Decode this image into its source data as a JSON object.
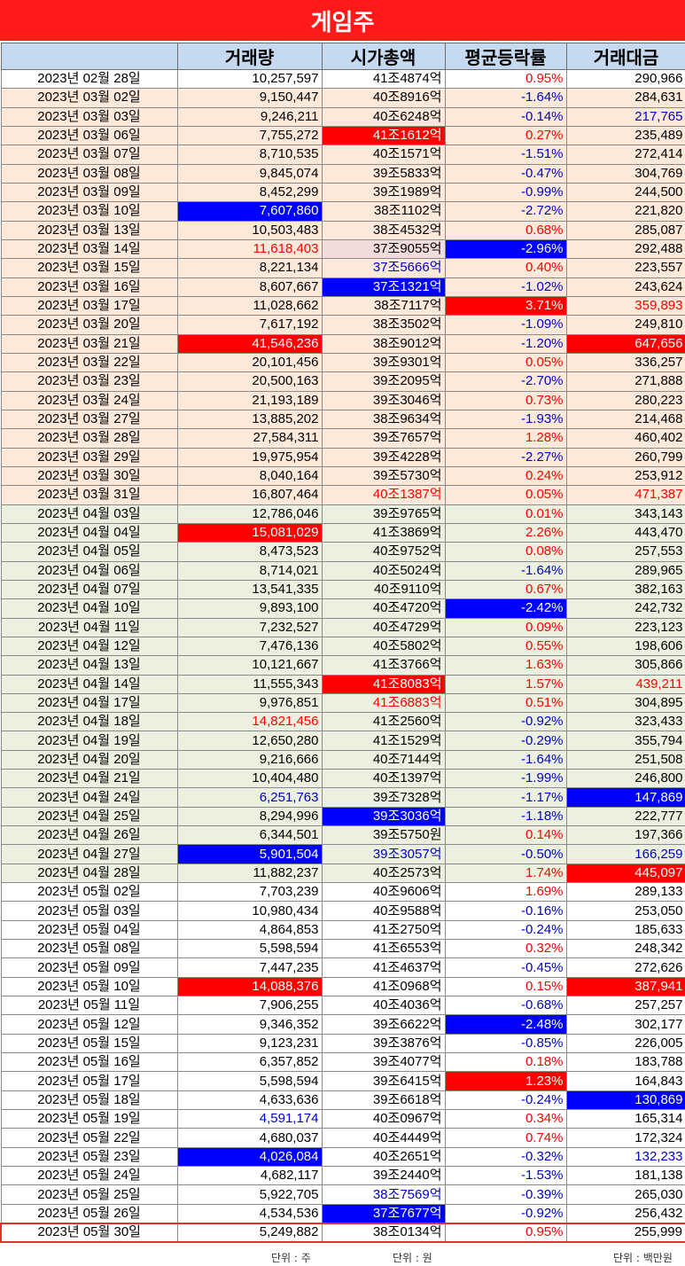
{
  "title": "게임주",
  "headers": [
    "",
    "거래량",
    "시가총액",
    "평균등락률",
    "거래대금"
  ],
  "colors": {
    "up": "#ff0000",
    "down": "#0000cc",
    "fill_red": "#ff0000",
    "fill_blue": "#0000ff",
    "mar_bg": "#fde9d9",
    "apr_bg": "#ebf1de",
    "header_bg": "#c5d9f1"
  },
  "rows": [
    {
      "g": "feb",
      "date": "2023년 02월 28일",
      "vol": "10,257,597",
      "cap": "41조4874억",
      "chg": "0.95%",
      "amt": "290,966"
    },
    {
      "g": "mar",
      "date": "2023년 03월 02일",
      "vol": "9,150,447",
      "cap": "40조8916억",
      "chg": "-1.64%",
      "amt": "284,631"
    },
    {
      "g": "mar",
      "date": "2023년 03월 03일",
      "vol": "9,246,211",
      "cap": "40조6248억",
      "chg": "-0.14%",
      "amt": "217,765",
      "s_amt": "txt-blue"
    },
    {
      "g": "mar",
      "date": "2023년 03월 06일",
      "vol": "7,755,272",
      "cap": "41조1612억",
      "chg": "0.27%",
      "amt": "235,489",
      "s_cap": "fill-red"
    },
    {
      "g": "mar",
      "date": "2023년 03월 07일",
      "vol": "8,710,535",
      "cap": "40조1571억",
      "chg": "-1.51%",
      "amt": "272,414"
    },
    {
      "g": "mar",
      "date": "2023년 03월 08일",
      "vol": "9,845,074",
      "cap": "39조5833억",
      "chg": "-0.47%",
      "amt": "304,769"
    },
    {
      "g": "mar",
      "date": "2023년 03월 09일",
      "vol": "8,452,299",
      "cap": "39조1989억",
      "chg": "-0.99%",
      "amt": "244,500"
    },
    {
      "g": "mar",
      "date": "2023년 03월 10일",
      "vol": "7,607,860",
      "cap": "38조1102억",
      "chg": "-2.72%",
      "amt": "221,820",
      "s_vol": "fill-blue"
    },
    {
      "g": "mar",
      "date": "2023년 03월 13일",
      "vol": "10,503,483",
      "cap": "38조4532억",
      "chg": "0.68%",
      "amt": "285,087"
    },
    {
      "g": "mar",
      "date": "2023년 03월 14일",
      "vol": "11,618,403",
      "cap": "37조9055억",
      "chg": "-2.96%",
      "amt": "292,488",
      "s_vol": "txt-red",
      "s_cap": "fill-pink",
      "s_chg": "fill-blue"
    },
    {
      "g": "mar",
      "date": "2023년 03월 15일",
      "vol": "8,221,134",
      "cap": "37조5666억",
      "chg": "0.40%",
      "amt": "223,557",
      "s_cap": "txt-blue"
    },
    {
      "g": "mar",
      "date": "2023년 03월 16일",
      "vol": "8,607,667",
      "cap": "37조1321억",
      "chg": "-1.02%",
      "amt": "243,624",
      "s_cap": "fill-blue"
    },
    {
      "g": "mar",
      "date": "2023년 03월 17일",
      "vol": "11,028,662",
      "cap": "38조7117억",
      "chg": "3.71%",
      "amt": "359,893",
      "s_chg": "fill-red",
      "s_amt": "txt-red"
    },
    {
      "g": "mar",
      "date": "2023년 03월 20일",
      "vol": "7,617,192",
      "cap": "38조3502억",
      "chg": "-1.09%",
      "amt": "249,810"
    },
    {
      "g": "mar",
      "date": "2023년 03월 21일",
      "vol": "41,546,236",
      "cap": "38조9012억",
      "chg": "-1.20%",
      "amt": "647,656",
      "s_vol": "fill-red",
      "s_amt": "fill-red"
    },
    {
      "g": "mar",
      "date": "2023년 03월 22일",
      "vol": "20,101,456",
      "cap": "39조9301억",
      "chg": "0.05%",
      "amt": "336,257"
    },
    {
      "g": "mar",
      "date": "2023년 03월 23일",
      "vol": "20,500,163",
      "cap": "39조2095억",
      "chg": "-2.70%",
      "amt": "271,888"
    },
    {
      "g": "mar",
      "date": "2023년 03월 24일",
      "vol": "21,193,189",
      "cap": "39조3046억",
      "chg": "0.73%",
      "amt": "280,223"
    },
    {
      "g": "mar",
      "date": "2023년 03월 27일",
      "vol": "13,885,202",
      "cap": "38조9634억",
      "chg": "-1.93%",
      "amt": "214,468"
    },
    {
      "g": "mar",
      "date": "2023년 03월 28일",
      "vol": "27,584,311",
      "cap": "39조7657억",
      "chg": "1.28%",
      "amt": "460,402"
    },
    {
      "g": "mar",
      "date": "2023년 03월 29일",
      "vol": "19,975,954",
      "cap": "39조4228억",
      "chg": "-2.27%",
      "amt": "260,799"
    },
    {
      "g": "mar",
      "date": "2023년 03월 30일",
      "vol": "8,040,164",
      "cap": "39조5730억",
      "chg": "0.24%",
      "amt": "253,912"
    },
    {
      "g": "mar",
      "date": "2023년 03월 31일",
      "vol": "16,807,464",
      "cap": "40조1387억",
      "chg": "0.05%",
      "amt": "471,387",
      "s_cap": "txt-red",
      "s_amt": "txt-red"
    },
    {
      "g": "apr",
      "date": "2023년 04월 03일",
      "vol": "12,786,046",
      "cap": "39조9765억",
      "chg": "0.01%",
      "amt": "343,143"
    },
    {
      "g": "apr",
      "date": "2023년 04월 04일",
      "vol": "15,081,029",
      "cap": "41조3869억",
      "chg": "2.26%",
      "amt": "443,470",
      "s_vol": "fill-red"
    },
    {
      "g": "apr",
      "date": "2023년 04월 05일",
      "vol": "8,473,523",
      "cap": "40조9752억",
      "chg": "0.08%",
      "amt": "257,553"
    },
    {
      "g": "apr",
      "date": "2023년 04월 06일",
      "vol": "8,714,021",
      "cap": "40조5024억",
      "chg": "-1.64%",
      "amt": "289,965"
    },
    {
      "g": "apr",
      "date": "2023년 04월 07일",
      "vol": "13,541,335",
      "cap": "40조9110억",
      "chg": "0.67%",
      "amt": "382,163"
    },
    {
      "g": "apr",
      "date": "2023년 04월 10일",
      "vol": "9,893,100",
      "cap": "40조4720억",
      "chg": "-2.42%",
      "amt": "242,732",
      "s_chg": "fill-blue"
    },
    {
      "g": "apr",
      "date": "2023년 04월 11일",
      "vol": "7,232,527",
      "cap": "40조4729억",
      "chg": "0.09%",
      "amt": "223,123"
    },
    {
      "g": "apr",
      "date": "2023년 04월 12일",
      "vol": "7,476,136",
      "cap": "40조5802억",
      "chg": "0.55%",
      "amt": "198,606"
    },
    {
      "g": "apr",
      "date": "2023년 04월 13일",
      "vol": "10,121,667",
      "cap": "41조3766억",
      "chg": "1.63%",
      "amt": "305,866"
    },
    {
      "g": "apr",
      "date": "2023년 04월 14일",
      "vol": "11,555,343",
      "cap": "41조8083억",
      "chg": "1.57%",
      "amt": "439,211",
      "s_cap": "fill-red",
      "s_amt": "txt-red"
    },
    {
      "g": "apr",
      "date": "2023년 04월 17일",
      "vol": "9,976,851",
      "cap": "41조6883억",
      "chg": "0.51%",
      "amt": "304,895",
      "s_cap": "txt-red"
    },
    {
      "g": "apr",
      "date": "2023년 04월 18일",
      "vol": "14,821,456",
      "cap": "41조2560억",
      "chg": "-0.92%",
      "amt": "323,433",
      "s_vol": "txt-red"
    },
    {
      "g": "apr",
      "date": "2023년 04월 19일",
      "vol": "12,650,280",
      "cap": "41조1529억",
      "chg": "-0.29%",
      "amt": "355,794"
    },
    {
      "g": "apr",
      "date": "2023년 04월 20일",
      "vol": "9,216,666",
      "cap": "40조7144억",
      "chg": "-1.64%",
      "amt": "251,508"
    },
    {
      "g": "apr",
      "date": "2023년 04월 21일",
      "vol": "10,404,480",
      "cap": "40조1397억",
      "chg": "-1.99%",
      "amt": "246,800"
    },
    {
      "g": "apr",
      "date": "2023년 04월 24일",
      "vol": "6,251,763",
      "cap": "39조7328억",
      "chg": "-1.17%",
      "amt": "147,869",
      "s_vol": "txt-blue",
      "s_amt": "fill-blue"
    },
    {
      "g": "apr",
      "date": "2023년 04월 25일",
      "vol": "8,294,996",
      "cap": "39조3036억",
      "chg": "-1.18%",
      "amt": "222,777",
      "s_cap": "fill-blue"
    },
    {
      "g": "apr",
      "date": "2023년 04월 26일",
      "vol": "6,344,501",
      "cap": "39조5750원",
      "chg": "0.14%",
      "amt": "197,366"
    },
    {
      "g": "apr",
      "date": "2023년 04월 27일",
      "vol": "5,901,504",
      "cap": "39조3057억",
      "chg": "-0.50%",
      "amt": "166,259",
      "s_vol": "fill-blue",
      "s_cap": "txt-blue",
      "s_amt": "txt-blue"
    },
    {
      "g": "apr",
      "date": "2023년 04월 28일",
      "vol": "11,882,237",
      "cap": "40조2573억",
      "chg": "1.74%",
      "amt": "445,097",
      "s_amt": "fill-red"
    },
    {
      "g": "may",
      "date": "2023년 05월 02일",
      "vol": "7,703,239",
      "cap": "40조9606억",
      "chg": "1.69%",
      "amt": "289,133"
    },
    {
      "g": "may",
      "date": "2023년 05월 03일",
      "vol": "10,980,434",
      "cap": "40조9588억",
      "chg": "-0.16%",
      "amt": "253,050"
    },
    {
      "g": "may",
      "date": "2023년 05월 04일",
      "vol": "4,864,853",
      "cap": "41조2750억",
      "chg": "-0.24%",
      "amt": "185,633"
    },
    {
      "g": "may",
      "date": "2023년 05월 08일",
      "vol": "5,598,594",
      "cap": "41조6553억",
      "chg": "0.32%",
      "amt": "248,342"
    },
    {
      "g": "may",
      "date": "2023년 05월 09일",
      "vol": "7,447,235",
      "cap": "41조4637억",
      "chg": "-0.45%",
      "amt": "272,626"
    },
    {
      "g": "may",
      "date": "2023년 05월 10일",
      "vol": "14,088,376",
      "cap": "41조0968억",
      "chg": "0.15%",
      "amt": "387,941",
      "s_vol": "fill-red",
      "s_amt": "fill-red"
    },
    {
      "g": "may",
      "date": "2023년 05월 11일",
      "vol": "7,906,255",
      "cap": "40조4036억",
      "chg": "-0.68%",
      "amt": "257,257"
    },
    {
      "g": "may",
      "date": "2023년 05월 12일",
      "vol": "9,346,352",
      "cap": "39조6622억",
      "chg": "-2.48%",
      "amt": "302,177",
      "s_chg": "fill-blue"
    },
    {
      "g": "may",
      "date": "2023년 05월 15일",
      "vol": "9,123,231",
      "cap": "39조3876억",
      "chg": "-0.85%",
      "amt": "226,005"
    },
    {
      "g": "may",
      "date": "2023년 05월 16일",
      "vol": "6,357,852",
      "cap": "39조4077억",
      "chg": "0.18%",
      "amt": "183,788"
    },
    {
      "g": "may",
      "date": "2023년 05월 17일",
      "vol": "5,598,594",
      "cap": "39조6415억",
      "chg": "1.23%",
      "amt": "164,843",
      "s_chg": "fill-red"
    },
    {
      "g": "may",
      "date": "2023년 05월 18일",
      "vol": "4,633,636",
      "cap": "39조6618억",
      "chg": "-0.24%",
      "amt": "130,869",
      "s_amt": "fill-blue"
    },
    {
      "g": "may",
      "date": "2023년 05월 19일",
      "vol": "4,591,174",
      "cap": "40조0967억",
      "chg": "0.34%",
      "amt": "165,314",
      "s_vol": "txt-blue"
    },
    {
      "g": "may",
      "date": "2023년 05월 22일",
      "vol": "4,680,037",
      "cap": "40조4449억",
      "chg": "0.74%",
      "amt": "172,324"
    },
    {
      "g": "may",
      "date": "2023년 05월 23일",
      "vol": "4,026,084",
      "cap": "40조2651억",
      "chg": "-0.32%",
      "amt": "132,233",
      "s_vol": "fill-blue",
      "s_amt": "txt-blue"
    },
    {
      "g": "may",
      "date": "2023년 05월 24일",
      "vol": "4,682,117",
      "cap": "39조2440억",
      "chg": "-1.53%",
      "amt": "181,138"
    },
    {
      "g": "may",
      "date": "2023년 05월 25일",
      "vol": "5,922,705",
      "cap": "38조7569억",
      "chg": "-0.39%",
      "amt": "265,030",
      "s_cap": "txt-blue"
    },
    {
      "g": "may",
      "date": "2023년 05월 26일",
      "vol": "4,534,536",
      "cap": "37조7677억",
      "chg": "-0.92%",
      "amt": "256,432",
      "s_cap": "fill-blue"
    },
    {
      "g": "may",
      "date": "2023년 05월 30일",
      "vol": "5,249,882",
      "cap": "38조0134억",
      "chg": "0.95%",
      "amt": "255,999",
      "last": true
    }
  ],
  "units": {
    "vol": "단위 : 주",
    "cap": "단위 : 원",
    "amt": "단위 : 백만원"
  }
}
